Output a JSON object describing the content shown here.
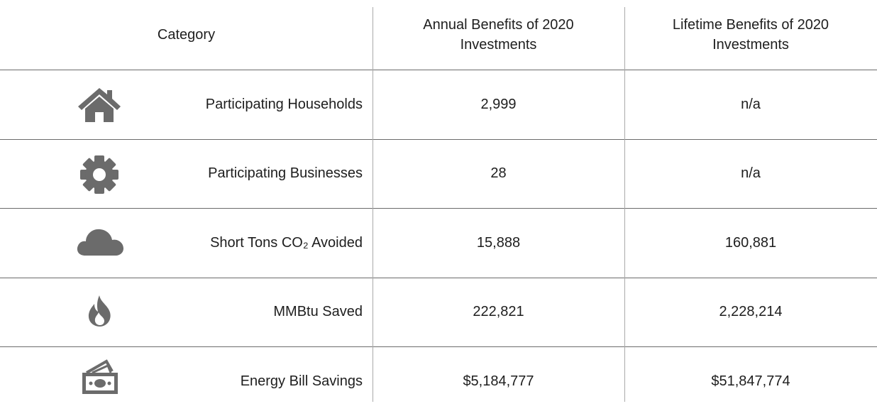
{
  "table": {
    "header": [
      "Category",
      "Annual Benefits of 2020 Investments",
      "Lifetime Benefits of 2020 Investments"
    ],
    "rows": [
      [
        "Participating Households",
        "2,999",
        "n/a"
      ],
      [
        "Participating Businesses",
        "28",
        "n/a"
      ],
      [
        "Short Tons CO₂ Avoided",
        "15,888",
        "160,881"
      ],
      [
        "MMBtu Saved",
        "222,821",
        "2,228,214"
      ],
      [
        "Energy Bill Savings",
        "$5,184,777",
        "$51,847,774"
      ]
    ]
  }
}
